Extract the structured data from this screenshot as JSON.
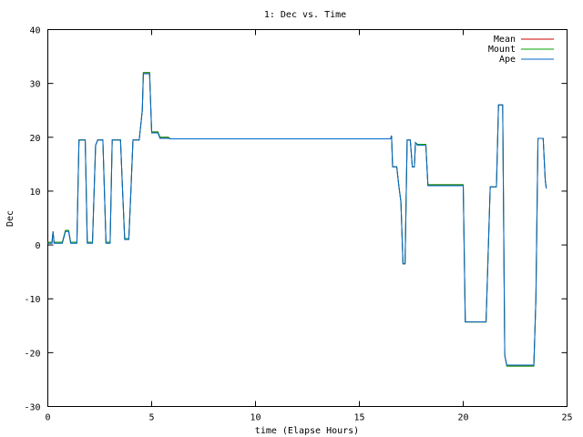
{
  "chart_data": {
    "type": "line",
    "title": "1: Dec vs. Time",
    "xlabel": "time (Elapse Hours)",
    "ylabel": "Dec",
    "xlim": [
      0,
      25
    ],
    "ylim": [
      -30,
      40
    ],
    "xticks": [
      0,
      5,
      10,
      15,
      20,
      25
    ],
    "yticks": [
      -30,
      -20,
      -10,
      0,
      10,
      20,
      30,
      40
    ],
    "grid": false,
    "legend_position": "top-right",
    "series": [
      {
        "name": "Mean",
        "color": "#cc0000",
        "points": [
          [
            0,
            0.5
          ],
          [
            0.2,
            0.5
          ],
          [
            0.25,
            2.5
          ],
          [
            0.3,
            0.5
          ],
          [
            0.7,
            0.5
          ],
          [
            0.85,
            2.7
          ],
          [
            1.0,
            2.7
          ],
          [
            1.1,
            0.5
          ],
          [
            1.4,
            0.5
          ],
          [
            1.5,
            19.5
          ],
          [
            1.8,
            19.5
          ],
          [
            1.9,
            0.5
          ],
          [
            2.15,
            0.5
          ],
          [
            2.3,
            18.5
          ],
          [
            2.4,
            19.5
          ],
          [
            2.65,
            19.5
          ],
          [
            2.8,
            0.5
          ],
          [
            3.0,
            0.5
          ],
          [
            3.1,
            19.5
          ],
          [
            3.5,
            19.5
          ],
          [
            3.6,
            10
          ],
          [
            3.7,
            1.2
          ],
          [
            3.9,
            1.2
          ],
          [
            4.0,
            10
          ],
          [
            4.1,
            19.5
          ],
          [
            4.4,
            19.5
          ],
          [
            4.55,
            25
          ],
          [
            4.6,
            32
          ],
          [
            4.9,
            32
          ],
          [
            5.0,
            21
          ],
          [
            5.3,
            21
          ],
          [
            5.4,
            20
          ],
          [
            5.8,
            20
          ],
          [
            5.9,
            19.7
          ],
          [
            16.5,
            19.7
          ],
          [
            16.55,
            20.3
          ],
          [
            16.6,
            14.5
          ],
          [
            16.8,
            14.5
          ],
          [
            16.9,
            11
          ],
          [
            17.0,
            8
          ],
          [
            17.1,
            -3.5
          ],
          [
            17.2,
            -3.5
          ],
          [
            17.3,
            19.5
          ],
          [
            17.45,
            19.5
          ],
          [
            17.55,
            14.5
          ],
          [
            17.65,
            14.5
          ],
          [
            17.7,
            19
          ],
          [
            17.8,
            18.7
          ],
          [
            18.2,
            18.7
          ],
          [
            18.3,
            11.2
          ],
          [
            20.0,
            11.2
          ],
          [
            20.1,
            -14.3
          ],
          [
            21.1,
            -14.3
          ],
          [
            21.3,
            10.8
          ],
          [
            21.6,
            10.8
          ],
          [
            21.7,
            26
          ],
          [
            21.9,
            26
          ],
          [
            22.0,
            -20.5
          ],
          [
            22.1,
            -22.5
          ],
          [
            23.4,
            -22.5
          ],
          [
            23.5,
            -10
          ],
          [
            23.6,
            19.8
          ],
          [
            23.85,
            19.8
          ],
          [
            23.95,
            12
          ],
          [
            24.0,
            10.5
          ]
        ]
      },
      {
        "name": "Mount",
        "color": "#00a000",
        "points": [
          [
            0,
            0.5
          ],
          [
            0.2,
            0.5
          ],
          [
            0.25,
            2.5
          ],
          [
            0.3,
            0.5
          ],
          [
            0.7,
            0.5
          ],
          [
            0.85,
            2.7
          ],
          [
            1.0,
            2.7
          ],
          [
            1.1,
            0.5
          ],
          [
            1.4,
            0.5
          ],
          [
            1.5,
            19.5
          ],
          [
            1.8,
            19.5
          ],
          [
            1.9,
            0.5
          ],
          [
            2.15,
            0.5
          ],
          [
            2.3,
            18.5
          ],
          [
            2.4,
            19.5
          ],
          [
            2.65,
            19.5
          ],
          [
            2.8,
            0.5
          ],
          [
            3.0,
            0.5
          ],
          [
            3.1,
            19.5
          ],
          [
            3.5,
            19.5
          ],
          [
            3.6,
            10
          ],
          [
            3.7,
            1.2
          ],
          [
            3.9,
            1.2
          ],
          [
            4.0,
            10
          ],
          [
            4.1,
            19.5
          ],
          [
            4.4,
            19.5
          ],
          [
            4.55,
            25
          ],
          [
            4.6,
            32
          ],
          [
            4.9,
            32
          ],
          [
            5.0,
            21
          ],
          [
            5.3,
            21
          ],
          [
            5.4,
            20
          ],
          [
            5.8,
            20
          ],
          [
            5.9,
            19.7
          ],
          [
            16.5,
            19.7
          ],
          [
            16.55,
            20.3
          ],
          [
            16.6,
            14.5
          ],
          [
            16.8,
            14.5
          ],
          [
            16.9,
            11
          ],
          [
            17.0,
            8
          ],
          [
            17.1,
            -3.5
          ],
          [
            17.2,
            -3.5
          ],
          [
            17.3,
            19.5
          ],
          [
            17.45,
            19.5
          ],
          [
            17.55,
            14.5
          ],
          [
            17.65,
            14.5
          ],
          [
            17.7,
            19
          ],
          [
            17.8,
            18.7
          ],
          [
            18.2,
            18.7
          ],
          [
            18.3,
            11.2
          ],
          [
            20.0,
            11.2
          ],
          [
            20.1,
            -14.3
          ],
          [
            21.1,
            -14.3
          ],
          [
            21.3,
            10.8
          ],
          [
            21.6,
            10.8
          ],
          [
            21.7,
            26
          ],
          [
            21.9,
            26
          ],
          [
            22.0,
            -20.5
          ],
          [
            22.1,
            -22.5
          ],
          [
            23.4,
            -22.5
          ],
          [
            23.5,
            -10
          ],
          [
            23.6,
            19.8
          ],
          [
            23.85,
            19.8
          ],
          [
            23.95,
            12
          ],
          [
            24.0,
            10.5
          ]
        ]
      },
      {
        "name": "Ape",
        "color": "#0066cc",
        "points": [
          [
            0,
            0.3
          ],
          [
            0.2,
            0.3
          ],
          [
            0.25,
            2.5
          ],
          [
            0.3,
            0.3
          ],
          [
            0.7,
            0.3
          ],
          [
            0.85,
            2.5
          ],
          [
            1.0,
            2.5
          ],
          [
            1.1,
            0.3
          ],
          [
            1.4,
            0.3
          ],
          [
            1.5,
            19.5
          ],
          [
            1.8,
            19.5
          ],
          [
            1.9,
            0.3
          ],
          [
            2.15,
            0.3
          ],
          [
            2.3,
            18.5
          ],
          [
            2.4,
            19.5
          ],
          [
            2.65,
            19.5
          ],
          [
            2.8,
            0.3
          ],
          [
            3.0,
            0.3
          ],
          [
            3.1,
            19.5
          ],
          [
            3.5,
            19.5
          ],
          [
            3.6,
            10
          ],
          [
            3.7,
            1
          ],
          [
            3.9,
            1
          ],
          [
            4.0,
            10
          ],
          [
            4.1,
            19.5
          ],
          [
            4.4,
            19.5
          ],
          [
            4.55,
            25
          ],
          [
            4.6,
            31.8
          ],
          [
            4.9,
            31.8
          ],
          [
            5.0,
            20.8
          ],
          [
            5.3,
            20.8
          ],
          [
            5.4,
            19.8
          ],
          [
            5.8,
            19.8
          ],
          [
            5.9,
            19.7
          ],
          [
            16.5,
            19.7
          ],
          [
            16.55,
            20.3
          ],
          [
            16.6,
            14.5
          ],
          [
            16.8,
            14.5
          ],
          [
            16.9,
            11
          ],
          [
            17.0,
            8
          ],
          [
            17.1,
            -3.5
          ],
          [
            17.2,
            -3.5
          ],
          [
            17.3,
            19.5
          ],
          [
            17.45,
            19.5
          ],
          [
            17.55,
            14.5
          ],
          [
            17.65,
            14.5
          ],
          [
            17.7,
            19
          ],
          [
            17.8,
            18.5
          ],
          [
            18.2,
            18.5
          ],
          [
            18.3,
            11
          ],
          [
            20.0,
            11
          ],
          [
            20.1,
            -14.3
          ],
          [
            21.1,
            -14.3
          ],
          [
            21.3,
            10.8
          ],
          [
            21.6,
            10.8
          ],
          [
            21.7,
            26
          ],
          [
            21.9,
            26
          ],
          [
            22.0,
            -20.5
          ],
          [
            22.1,
            -22.3
          ],
          [
            23.4,
            -22.3
          ],
          [
            23.5,
            -10
          ],
          [
            23.6,
            19.8
          ],
          [
            23.85,
            19.8
          ],
          [
            23.95,
            12
          ],
          [
            24.0,
            10.5
          ]
        ]
      }
    ]
  }
}
